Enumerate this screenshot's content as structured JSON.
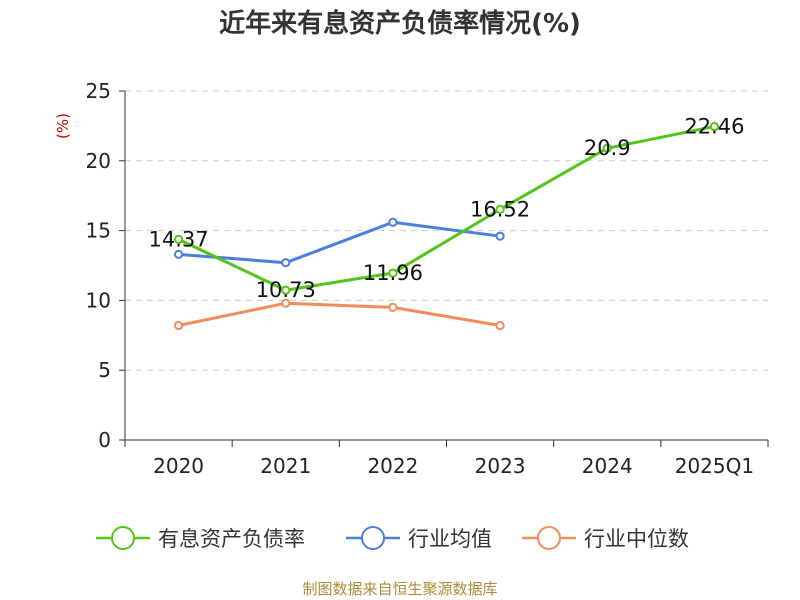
{
  "chart_data": {
    "type": "line",
    "title": "近年来有息资产负债率情况(%)",
    "ylabel": "(%)",
    "categories": [
      "2020",
      "2021",
      "2022",
      "2023",
      "2024",
      "2025Q1"
    ],
    "ylim": [
      0,
      25
    ],
    "yticks": [
      "0",
      "5",
      "10",
      "15",
      "20",
      "25"
    ],
    "grid": true,
    "legend_position": "bottom",
    "series": [
      {
        "name": "有息资产负债率",
        "color": "#52c41a",
        "values": [
          14.37,
          10.73,
          11.96,
          16.52,
          20.9,
          22.46
        ],
        "labels": [
          "14.37",
          "10.73",
          "11.96",
          "16.52",
          "20.9",
          "22.46"
        ]
      },
      {
        "name": "行业均值",
        "color": "#4a7fdc",
        "values": [
          13.3,
          12.7,
          15.6,
          14.6,
          null,
          null
        ]
      },
      {
        "name": "行业中位数",
        "color": "#f28c5a",
        "values": [
          8.2,
          9.8,
          9.5,
          8.2,
          null,
          null
        ]
      }
    ]
  },
  "source_text": "制图数据来自恒生聚源数据库",
  "colors": {
    "unit_label": "#cc0000",
    "source_text": "#b08a3a",
    "axis": "#333333",
    "grid": "#cccccc"
  }
}
